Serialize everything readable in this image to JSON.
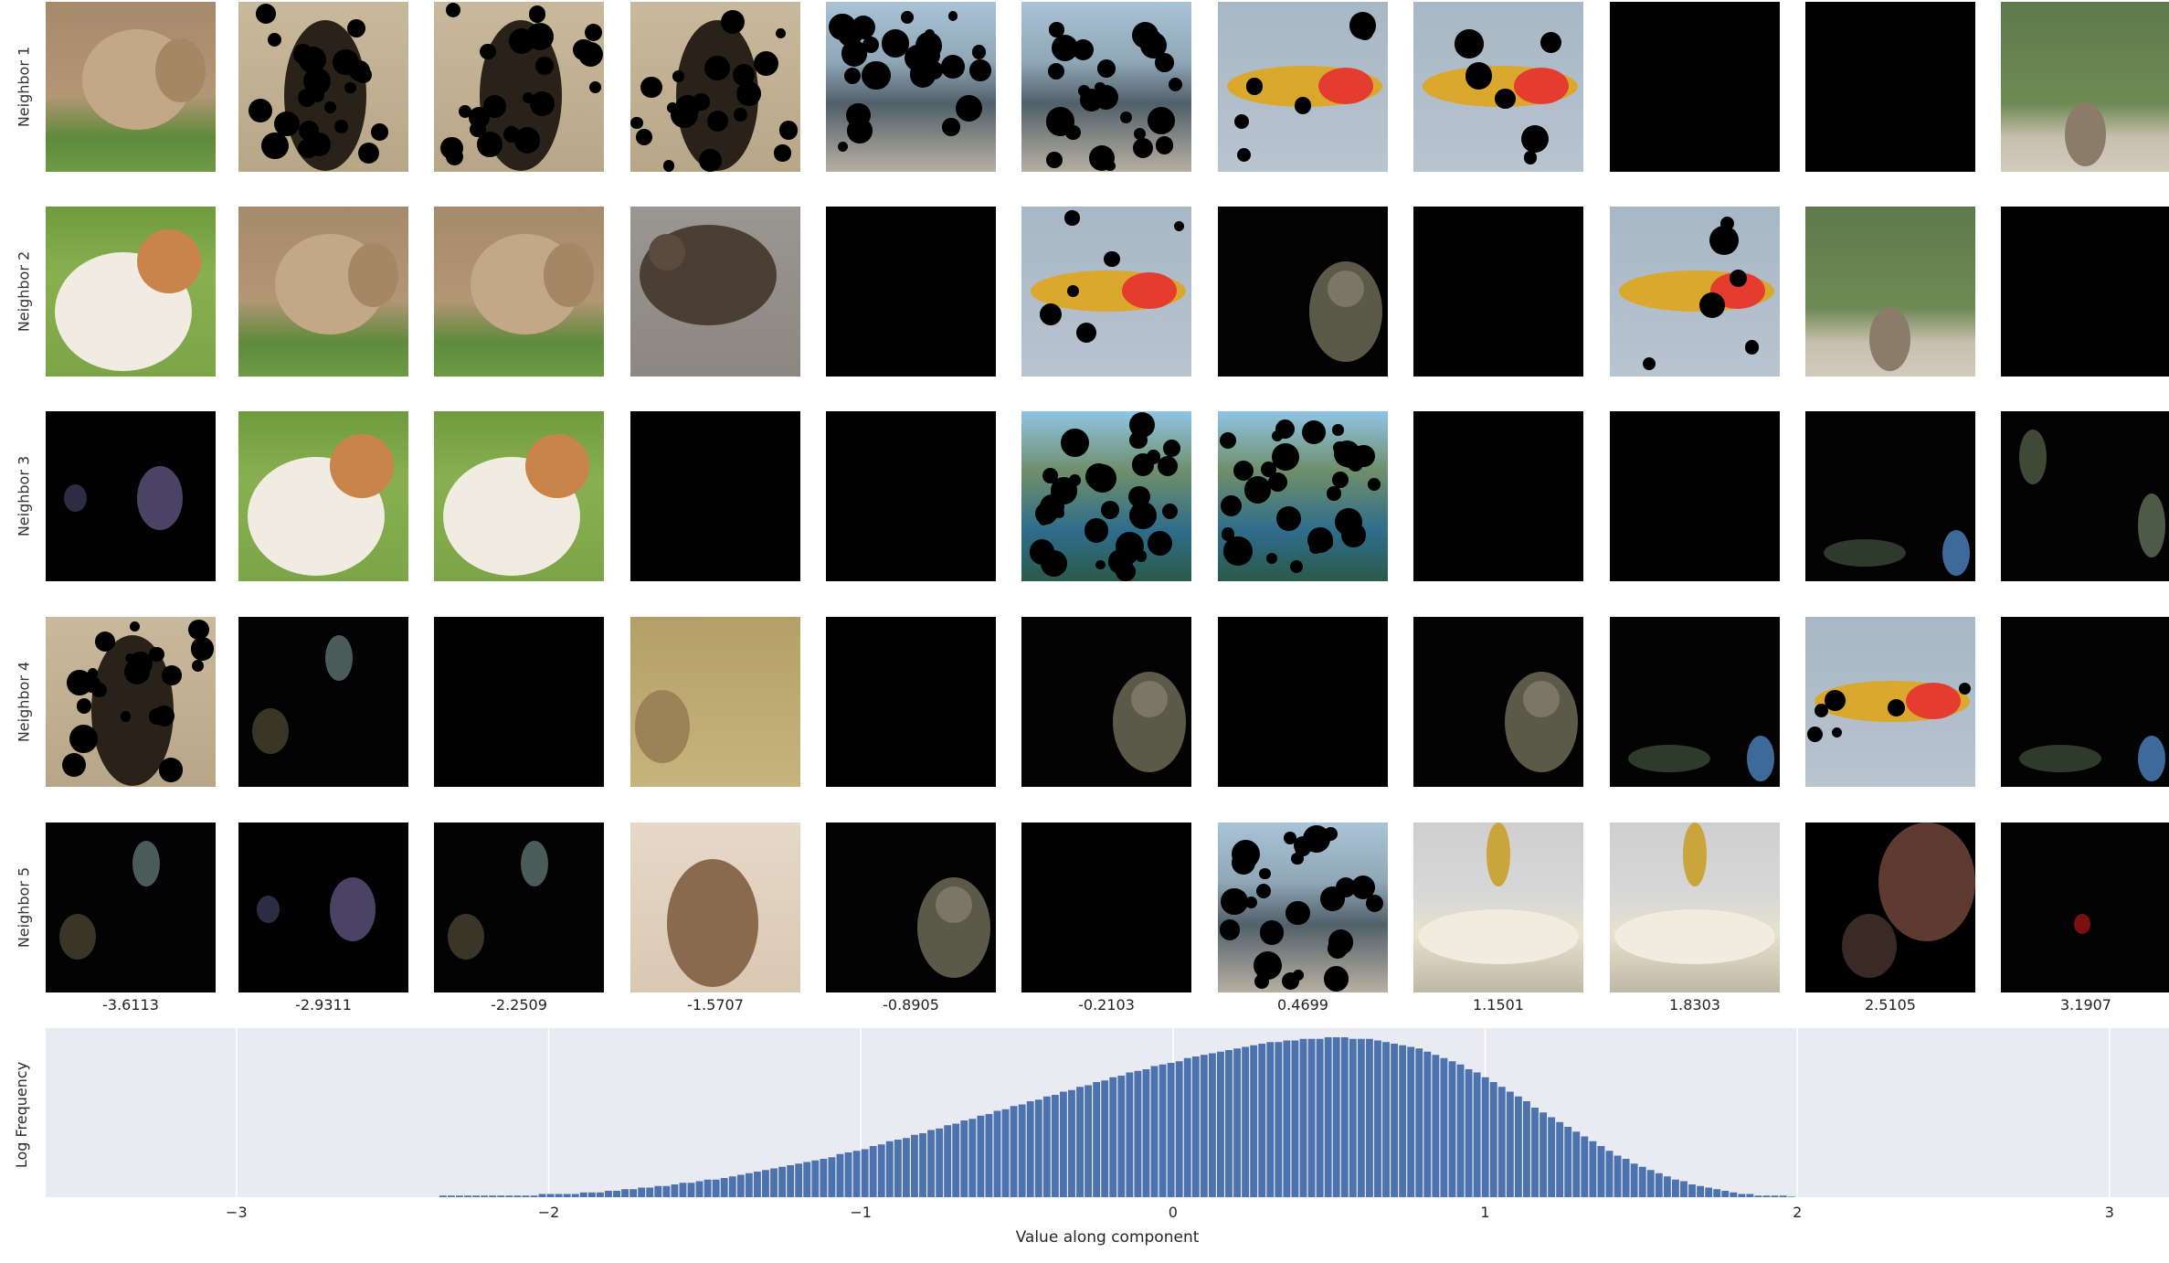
{
  "figure": {
    "row_labels": [
      "Neighbor 1",
      "Neighbor 2",
      "Neighbor 3",
      "Neighbor 4",
      "Neighbor 5"
    ],
    "column_values": [
      "-3.6113",
      "-2.9311",
      "-2.2509",
      "-1.5707",
      "-0.8905",
      "-0.2103",
      "0.4699",
      "1.1501",
      "1.8303",
      "2.5105",
      "3.1907"
    ],
    "thumbnails": [
      [
        "lynx",
        "bird-masked",
        "bird-masked",
        "bird-masked",
        "scene-masked",
        "scene-masked",
        "plane-masked",
        "plane-masked",
        "dark",
        "dark",
        "kangaroo-bush"
      ],
      [
        "dog",
        "lynx",
        "lynx",
        "grouse",
        "dark",
        "plane-masked",
        "dark-patch",
        "dark",
        "plane-masked",
        "kangaroo-bush",
        "dark"
      ],
      [
        "dark-purple",
        "dog",
        "dog",
        "dark",
        "dark",
        "lake-masked",
        "lake-masked",
        "dark",
        "dark",
        "dark-blue",
        "dark-green"
      ],
      [
        "bird-masked",
        "dark-faint",
        "dark",
        "rabbit",
        "dark",
        "dark-patch",
        "dark",
        "dark-patch",
        "dark-blue",
        "plane-masked",
        "dark-blue"
      ],
      [
        "dark-faint",
        "dark-purple",
        "dark-faint",
        "squirrel",
        "dark-patch",
        "dark",
        "scene-masked",
        "palace",
        "palace",
        "brick-masked",
        "dark-red"
      ]
    ]
  },
  "chart_data": {
    "type": "bar",
    "xlabel": "Value along component",
    "ylabel": "Log Frequency",
    "xlim": [
      -3.6113,
      3.1907
    ],
    "xticks": [
      -3,
      -2,
      -1,
      0,
      1,
      2,
      3
    ],
    "xtick_labels": [
      "−3",
      "−2",
      "−1",
      "0",
      "1",
      "2",
      "3"
    ],
    "grid": true,
    "bar_color": "#4c72b0",
    "background": "#eaeaf2",
    "bins_left": -2.35,
    "bin_width": 0.0265,
    "values": [
      0.01,
      0.01,
      0.01,
      0.01,
      0.01,
      0.01,
      0.01,
      0.01,
      0.01,
      0.01,
      0.01,
      0.01,
      0.02,
      0.02,
      0.02,
      0.02,
      0.02,
      0.03,
      0.03,
      0.03,
      0.04,
      0.04,
      0.05,
      0.05,
      0.06,
      0.06,
      0.07,
      0.07,
      0.08,
      0.09,
      0.09,
      0.1,
      0.11,
      0.11,
      0.12,
      0.13,
      0.14,
      0.15,
      0.16,
      0.17,
      0.18,
      0.19,
      0.2,
      0.21,
      0.22,
      0.23,
      0.24,
      0.25,
      0.27,
      0.28,
      0.29,
      0.3,
      0.32,
      0.33,
      0.35,
      0.36,
      0.37,
      0.39,
      0.4,
      0.42,
      0.43,
      0.45,
      0.46,
      0.48,
      0.49,
      0.51,
      0.52,
      0.54,
      0.55,
      0.57,
      0.58,
      0.6,
      0.61,
      0.63,
      0.64,
      0.66,
      0.67,
      0.69,
      0.7,
      0.72,
      0.73,
      0.75,
      0.76,
      0.78,
      0.79,
      0.8,
      0.82,
      0.83,
      0.84,
      0.85,
      0.87,
      0.88,
      0.89,
      0.9,
      0.91,
      0.92,
      0.93,
      0.94,
      0.95,
      0.96,
      0.97,
      0.97,
      0.98,
      0.98,
      0.99,
      0.99,
      0.99,
      1.0,
      1.0,
      1.0,
      0.99,
      0.99,
      0.99,
      0.98,
      0.97,
      0.96,
      0.95,
      0.94,
      0.93,
      0.91,
      0.89,
      0.87,
      0.85,
      0.83,
      0.8,
      0.78,
      0.75,
      0.72,
      0.69,
      0.66,
      0.63,
      0.6,
      0.56,
      0.53,
      0.5,
      0.47,
      0.44,
      0.41,
      0.38,
      0.35,
      0.32,
      0.29,
      0.26,
      0.24,
      0.21,
      0.19,
      0.17,
      0.15,
      0.13,
      0.11,
      0.1,
      0.08,
      0.07,
      0.06,
      0.05,
      0.04,
      0.03,
      0.02,
      0.02,
      0.01,
      0.01,
      0.01,
      0.01,
      0.0
    ]
  }
}
